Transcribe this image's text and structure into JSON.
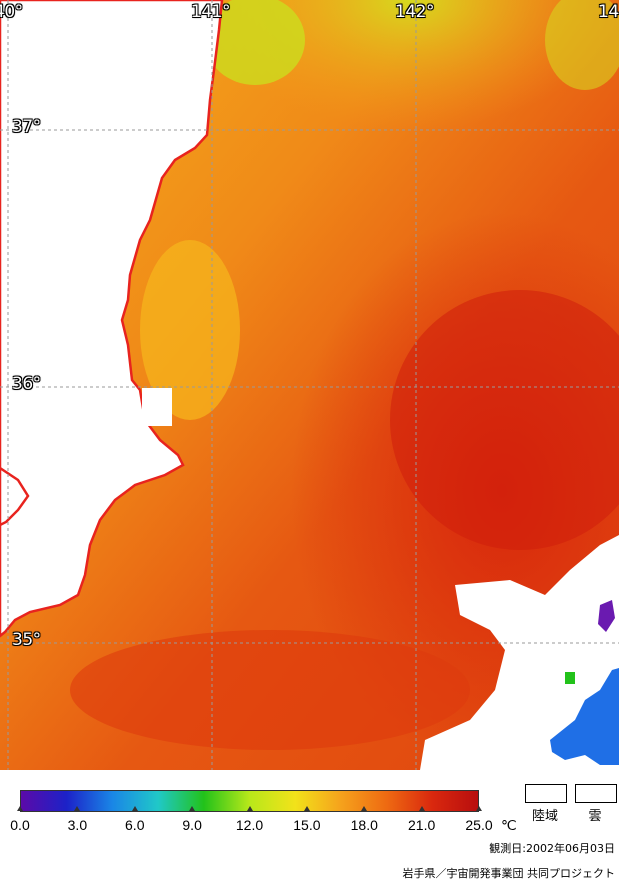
{
  "map": {
    "longitude_labels": [
      "40°",
      "141°",
      "142°",
      "14"
    ],
    "latitude_labels": [
      "37°",
      "36°",
      "35°"
    ],
    "colors": {
      "land": "#ffffff",
      "coastline": "#e8231e",
      "grid": "#9a9a9a",
      "sea_warm": "#e04a10",
      "sea_mid": "#f27a1a",
      "sea_cool": "#f5a21c",
      "sea_cold": "#c9e21e",
      "cloud_blue": "#1f6fe6",
      "cloud_purple": "#6a1ab0"
    }
  },
  "legend": {
    "tick_values": [
      "0.0",
      "3.0",
      "6.0",
      "9.0",
      "12.0",
      "15.0",
      "18.0",
      "21.0",
      "25.0"
    ],
    "unit": "℃",
    "land_label": "陸域",
    "cloud_label": "雲",
    "gradient_colors": [
      "#5b0aa8",
      "#1c22c8",
      "#1a86e6",
      "#20c8c8",
      "#22c21a",
      "#b8e81a",
      "#f2e21a",
      "#f5a21c",
      "#ee6a12",
      "#d9280e",
      "#b80e0e"
    ]
  },
  "footer": {
    "observation_date": "観測日:2002年06月03日",
    "credit": "岩手県／宇宙開発事業団  共同プロジェクト"
  }
}
